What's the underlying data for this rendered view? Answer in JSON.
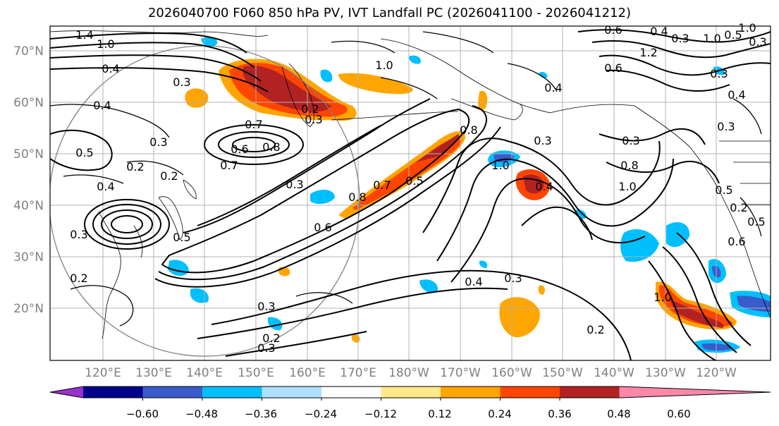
{
  "title": "2026040700 F060 850 hPa PV, IVT Landfall PC (2026041100 - 2026041212)",
  "lat_labels": [
    "70°N",
    "60°N",
    "50°N",
    "40°N",
    "30°N",
    "20°N"
  ],
  "lon_labels": [
    "120°E",
    "130°E",
    "140°E",
    "150°E",
    "160°E",
    "170°E",
    "180°W",
    "170°W",
    "160°W",
    "150°W",
    "140°W",
    "130°W",
    "120°W"
  ],
  "colorbar": {
    "colors": [
      "#9932CC",
      "#00008B",
      "#3A5BCC",
      "#00BFFF",
      "#B0E0FF",
      "#FFFFFF",
      "#FFE98A",
      "#FFA500",
      "#FF4500",
      "#B22222",
      "#FF88AA"
    ],
    "tick_labels": [
      "−0.60",
      "−0.48",
      "−0.36",
      "−0.24",
      "−0.12",
      "0.12",
      "0.24",
      "0.36",
      "0.48",
      "0.60"
    ]
  },
  "contour_labels": [
    "1.4",
    "1.0",
    "0.4",
    "0.3",
    "0.4",
    "0.5",
    "0.3",
    "0.2",
    "0.4",
    "0.7",
    "0.6",
    "0.8",
    "0.7",
    "0.2",
    "0.5",
    "0.3",
    "0.3",
    "0.2",
    "0.3",
    "0.2",
    "0.3",
    "1.0",
    "0.3",
    "0.2",
    "0.4",
    "0.3",
    "1.0",
    "0.2",
    "0.6",
    "0.4",
    "0.4",
    "1.0",
    "0.8",
    "0.7",
    "0.5",
    "0.8",
    "0.6",
    "0.4",
    "1.0",
    "0.3",
    "0.4",
    "0.3",
    "0.2",
    "0.5",
    "1.0",
    "0.6",
    "0.6",
    "0.5",
    "0.3",
    "0.3",
    "0.3",
    "0.3",
    "0.5",
    "1.2",
    "0.8",
    "1.0"
  ]
}
